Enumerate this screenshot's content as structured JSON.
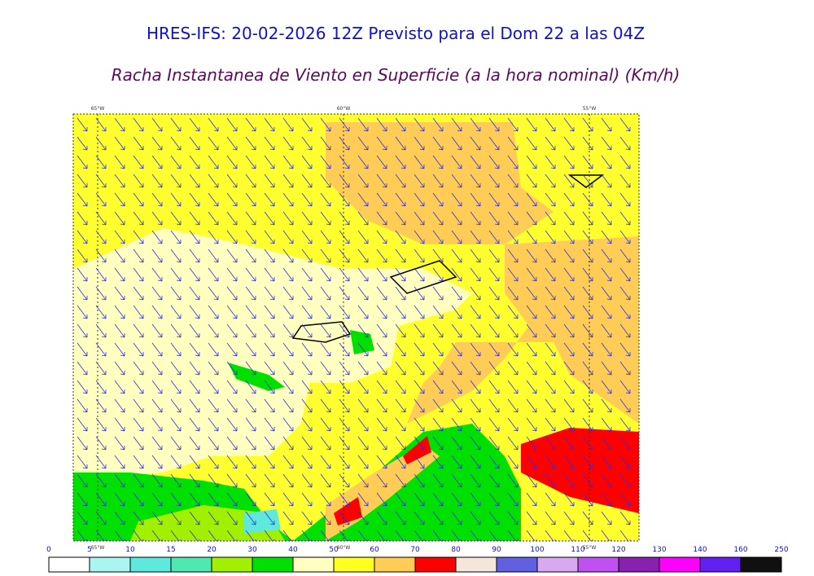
{
  "header": {
    "title": "HRES-IFS: 20-02-2026 12Z Previsto para el Dom 22 a las 04Z",
    "subtitle": "Racha Instantanea de Viento en Superficie (a la hora nominal) (Km/h)"
  },
  "map": {
    "lon_labels": [
      "65°W",
      "60°W",
      "55°W"
    ]
  },
  "colorbar": {
    "ticks": [
      0,
      5,
      10,
      15,
      20,
      30,
      40,
      50,
      60,
      70,
      80,
      90,
      100,
      110,
      120,
      130,
      140,
      160,
      250
    ],
    "colors": [
      "#ffffff",
      "#aaf5f0",
      "#5fe8dc",
      "#50e8b0",
      "#a0f000",
      "#00e000",
      "#ffffc0",
      "#ffff20",
      "#ffcc55",
      "#ff0000",
      "#f5e6dc",
      "#6060e0",
      "#d8a8f0",
      "#c050f0",
      "#8820b0",
      "#ff00ff",
      "#6020f0",
      "#101010"
    ]
  }
}
